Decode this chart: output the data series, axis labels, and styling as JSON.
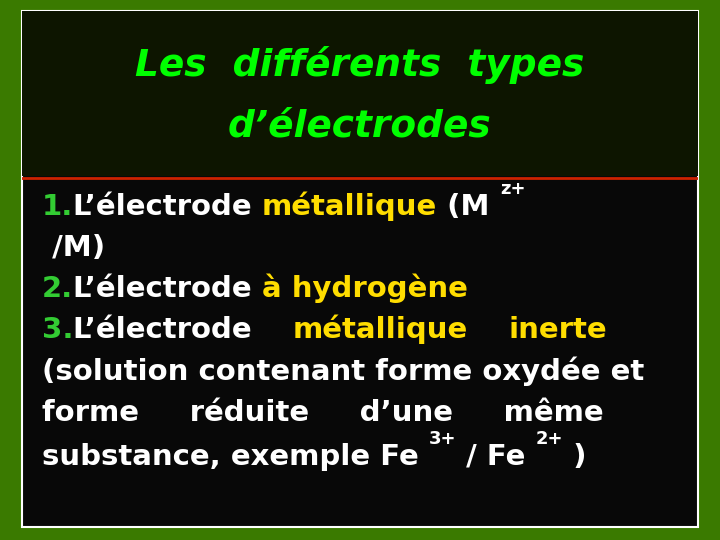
{
  "bg_outer": "#3a7a00",
  "bg_inner": "#080808",
  "bg_title": "#0a1a00",
  "title_line1": "Les  différents  types",
  "title_line2": "d’électrodes",
  "title_color": "#00ff00",
  "separator_color": "#cc2200",
  "body_lines": [
    [
      {
        "text": "1.",
        "color": "#33cc33",
        "size": 21,
        "super": false
      },
      {
        "text": "L’électrode ",
        "color": "#ffffff",
        "size": 21,
        "super": false
      },
      {
        "text": "métallique",
        "color": "#ffdd00",
        "size": 21,
        "super": false
      },
      {
        "text": " (M ",
        "color": "#ffffff",
        "size": 21,
        "super": false
      },
      {
        "text": "z+",
        "color": "#ffffff",
        "size": 13,
        "super": true
      }
    ],
    [
      {
        "text": " /M)",
        "color": "#ffffff",
        "size": 21,
        "super": false
      }
    ],
    [
      {
        "text": "2.",
        "color": "#33cc33",
        "size": 21,
        "super": false
      },
      {
        "text": "L’électrode ",
        "color": "#ffffff",
        "size": 21,
        "super": false
      },
      {
        "text": "à hydrogène",
        "color": "#ffdd00",
        "size": 21,
        "super": false
      }
    ],
    [
      {
        "text": "3.",
        "color": "#33cc33",
        "size": 21,
        "super": false
      },
      {
        "text": "L’électrode    ",
        "color": "#ffffff",
        "size": 21,
        "super": false
      },
      {
        "text": "métallique",
        "color": "#ffdd00",
        "size": 21,
        "super": false
      },
      {
        "text": "    ",
        "color": "#ffffff",
        "size": 21,
        "super": false
      },
      {
        "text": "inerte",
        "color": "#ffdd00",
        "size": 21,
        "super": false
      }
    ],
    [
      {
        "text": "(solution contenant forme oxydée et",
        "color": "#ffffff",
        "size": 21,
        "super": false
      }
    ],
    [
      {
        "text": "forme     réduite     d’une     même",
        "color": "#ffffff",
        "size": 21,
        "super": false
      }
    ],
    [
      {
        "text": "substance, exemple Fe ",
        "color": "#ffffff",
        "size": 21,
        "super": false
      },
      {
        "text": "3+",
        "color": "#ffffff",
        "size": 13,
        "super": true
      },
      {
        "text": " / Fe ",
        "color": "#ffffff",
        "size": 21,
        "super": false
      },
      {
        "text": "2+",
        "color": "#ffffff",
        "size": 13,
        "super": true
      },
      {
        "text": " )",
        "color": "#ffffff",
        "size": 21,
        "super": false
      }
    ]
  ]
}
